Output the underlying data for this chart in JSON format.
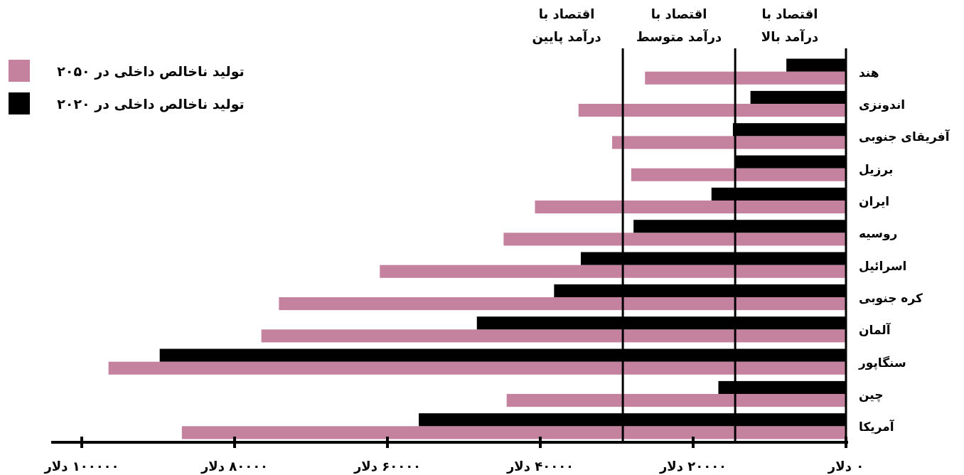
{
  "chart_data": {
    "type": "bar",
    "orientation": "horizontal",
    "grid": false,
    "legend": "top left",
    "categories": [
      "هند",
      "اندونزی",
      "آفریقای جنوبی",
      "برزیل",
      "ایران",
      "روسیه",
      "اسرائیل",
      "کره جنوبی",
      "آلمان",
      "سنگاپور",
      "چین",
      "آمریکا"
    ],
    "series": [
      {
        "name": "تولید ناخالص داخلی در ۲۰۵۰",
        "color": "#c4829f",
        "values": [
          26300,
          35000,
          30600,
          28100,
          40700,
          44800,
          61000,
          74200,
          76500,
          96500,
          44400,
          86900
        ]
      },
      {
        "name": "تولید ناخالص داخلی در ۲۰۲۰",
        "color": "#000000",
        "values": [
          7800,
          12500,
          14800,
          14500,
          17600,
          27800,
          34700,
          38200,
          48300,
          89800,
          16700,
          55900
        ]
      }
    ],
    "xlim": [
      104000,
      0
    ],
    "xticks": [
      {
        "value": 100000,
        "label": "۱۰۰۰۰۰ دلار"
      },
      {
        "value": 80000,
        "label": "۸۰۰۰۰ دلار"
      },
      {
        "value": 60000,
        "label": "۶۰۰۰۰ دلار"
      },
      {
        "value": 40000,
        "label": "۴۰۰۰۰ دلار"
      },
      {
        "value": 20000,
        "label": "۲۰۰۰۰ دلار"
      },
      {
        "value": 0,
        "label": "۰ دلار"
      }
    ],
    "ref_lines": [
      {
        "axis": "x",
        "value": 29200,
        "label": "اقتصاد با\nدرآمد پایین"
      },
      {
        "axis": "x",
        "value": 14500,
        "label": "اقتصاد با\nدرآمد متوسط"
      },
      {
        "axis": "x",
        "value": 0,
        "label": "اقتصاد با\nدرآمد بالا"
      }
    ]
  }
}
